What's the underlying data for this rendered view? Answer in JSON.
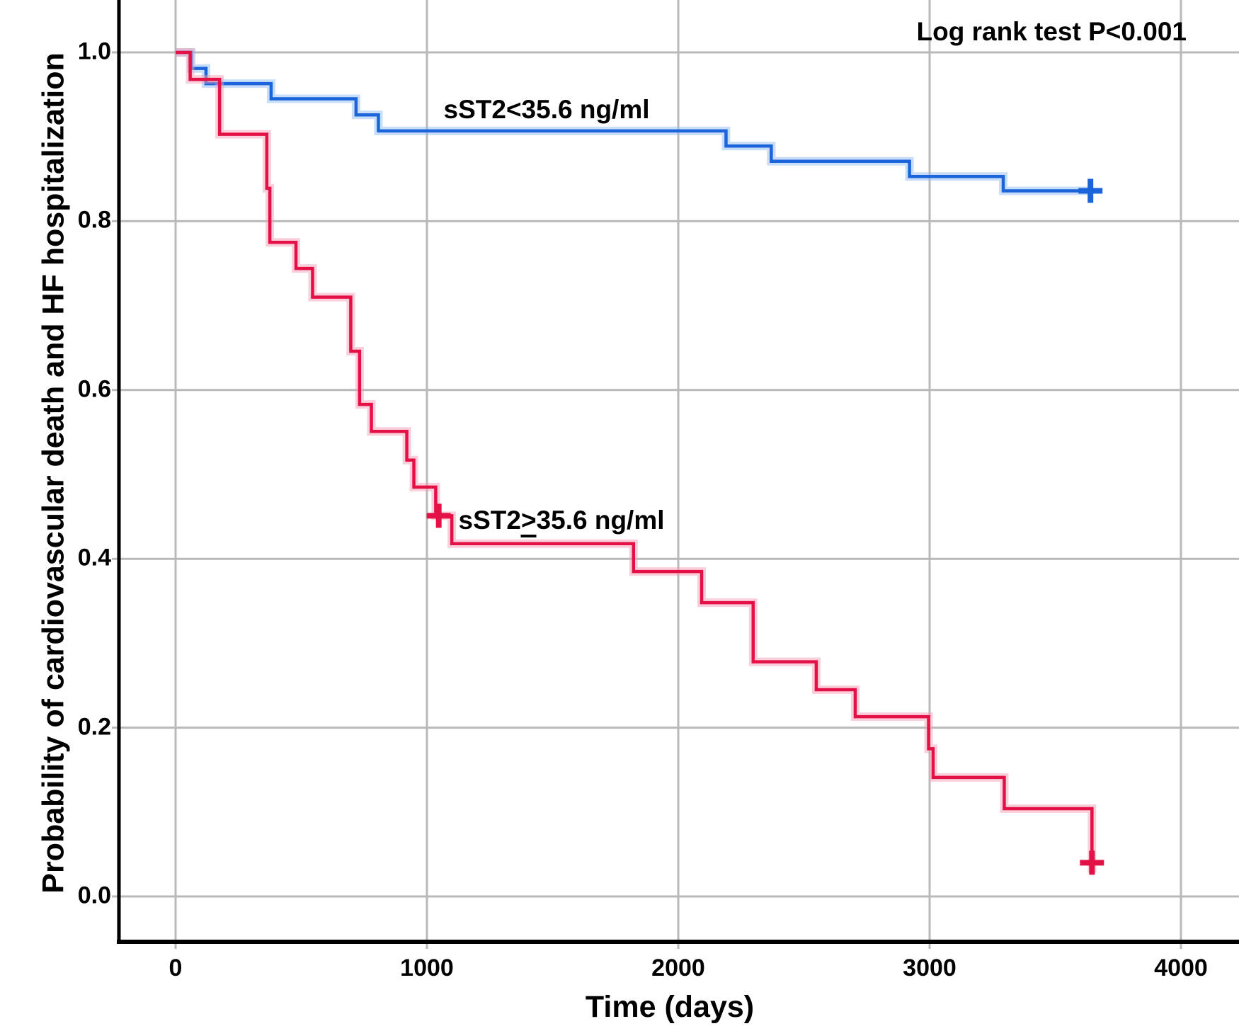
{
  "chart_data": {
    "type": "line",
    "subtype": "kaplan-meier-step",
    "title": "",
    "annotation": "Log rank test P<0.001",
    "xlabel": "Time (days)",
    "ylabel": "Probability of cardiovascular death and HF hospitalization",
    "xlim": [
      0,
      4000
    ],
    "ylim": [
      0.0,
      1.0
    ],
    "grid": "on",
    "legend_position": "inline-labels",
    "x_ticks": [
      "0",
      "1000",
      "2000",
      "3000",
      "4000"
    ],
    "y_ticks": [
      "0.0",
      "0.2",
      "0.4",
      "0.6",
      "0.8",
      "1.0"
    ],
    "axis_color": "#000000",
    "gridline_color": "#b9b9b9",
    "series": [
      {
        "name": "sST2<35.6 ng/ml",
        "label": {
          "pre": "sST2",
          "cmp": "<",
          "cmp_underline": false,
          "suffix": "35.6 ng/ml"
        },
        "color": "#1b64d9",
        "halo_color": "#8fbbf2",
        "steps": [
          [
            0,
            1.0
          ],
          [
            62,
            0.981
          ],
          [
            121,
            0.963
          ],
          [
            380,
            0.945
          ],
          [
            718,
            0.926
          ],
          [
            807,
            0.907
          ],
          [
            2190,
            0.889
          ],
          [
            2370,
            0.871
          ],
          [
            2920,
            0.853
          ],
          [
            3293,
            0.836
          ]
        ],
        "end_time": 3642,
        "censors": [
          [
            3640,
            0.836
          ]
        ]
      },
      {
        "name": "sST2>=35.6 ng/ml",
        "label": {
          "pre": "sST2",
          "cmp": ">",
          "cmp_underline": true,
          "suffix": "35.6 ng/ml"
        },
        "color": "#e31145",
        "halo_color": "#f59db5",
        "steps": [
          [
            0,
            1.0
          ],
          [
            58,
            0.968
          ],
          [
            175,
            0.903
          ],
          [
            363,
            0.839
          ],
          [
            375,
            0.775
          ],
          [
            479,
            0.744
          ],
          [
            545,
            0.71
          ],
          [
            697,
            0.646
          ],
          [
            732,
            0.583
          ],
          [
            779,
            0.551
          ],
          [
            920,
            0.517
          ],
          [
            948,
            0.485
          ],
          [
            1035,
            0.451
          ],
          [
            1099,
            0.418
          ],
          [
            1822,
            0.385
          ],
          [
            2093,
            0.348
          ],
          [
            2298,
            0.278
          ],
          [
            2549,
            0.245
          ],
          [
            2704,
            0.213
          ],
          [
            2996,
            0.175
          ],
          [
            3014,
            0.141
          ],
          [
            3297,
            0.104
          ],
          [
            3646,
            0.028
          ]
        ],
        "end_time": 3646,
        "censors": [
          [
            1047,
            0.451
          ],
          [
            3646,
            0.04
          ]
        ]
      }
    ]
  },
  "labels": {
    "annotation": "Log rank test P<0.001",
    "x_axis_title": "Time (days)",
    "y_axis_title": "Probability of cardiovascular death and HF hospitalization"
  }
}
